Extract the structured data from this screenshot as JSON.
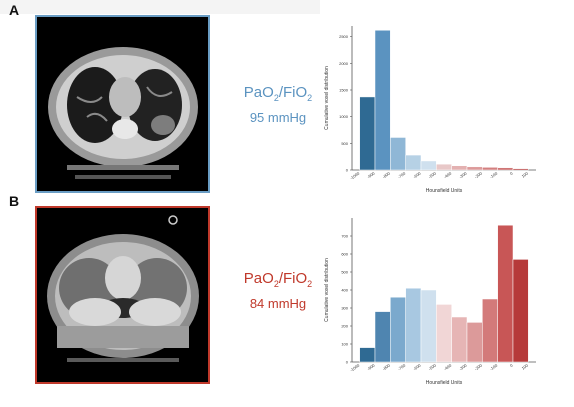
{
  "panels": [
    {
      "letter": "A",
      "ratio_label": "PaO",
      "ratio_sub1": "2",
      "ratio_slash": "/FiO",
      "ratio_sub2": "2",
      "ratio_value": "95 mmHg",
      "color": "#5b93c0"
    },
    {
      "letter": "B",
      "ratio_label": "PaO",
      "ratio_sub1": "2",
      "ratio_slash": "/FiO",
      "ratio_sub2": "2",
      "ratio_value": "84 mmHg",
      "color": "#c0392b"
    }
  ],
  "chart_data": [
    {
      "type": "bar",
      "ylabel": "Cumulative voxel distribution",
      "xlabel": "Hounsfield Units",
      "categories": [
        "-1000",
        "-900",
        "-800",
        "-700",
        "-600",
        "-500",
        "-400",
        "-300",
        "-200",
        "-100",
        "0",
        "100"
      ],
      "values": [
        1370,
        2620,
        610,
        280,
        170,
        110,
        80,
        60,
        50,
        40,
        25,
        0
      ],
      "ylim": [
        0,
        2700
      ],
      "yticks": [
        "0",
        "500",
        "1000",
        "1500",
        "2000",
        "2500"
      ],
      "colors": [
        "#2f6a93",
        "#5b93c0",
        "#8fb7d6",
        "#b6d1e5",
        "#cfe0ee",
        "#e8c8c8",
        "#e3b1b1",
        "#dc9a9a",
        "#d38080",
        "#c96565",
        "#b84545",
        "#a33030"
      ]
    },
    {
      "type": "bar",
      "ylabel": "Cumulative voxel distribution",
      "xlabel": "Hounsfield Units",
      "categories": [
        "-1000",
        "-900",
        "-800",
        "-700",
        "-600",
        "-500",
        "-400",
        "-300",
        "-200",
        "-100",
        "0",
        "100"
      ],
      "values": [
        80,
        280,
        360,
        410,
        400,
        320,
        250,
        220,
        350,
        760,
        570,
        0
      ],
      "ylim": [
        0,
        800
      ],
      "yticks": [
        "0",
        "100",
        "200",
        "300",
        "400",
        "500",
        "600",
        "700"
      ],
      "colors": [
        "#2f6a93",
        "#4f85b0",
        "#7ba9cd",
        "#a8c8e1",
        "#cfe0ee",
        "#f1d6d6",
        "#e6b5b5",
        "#dc9a9a",
        "#d37a7a",
        "#c85656",
        "#b63a3a",
        "#a33030"
      ]
    }
  ]
}
